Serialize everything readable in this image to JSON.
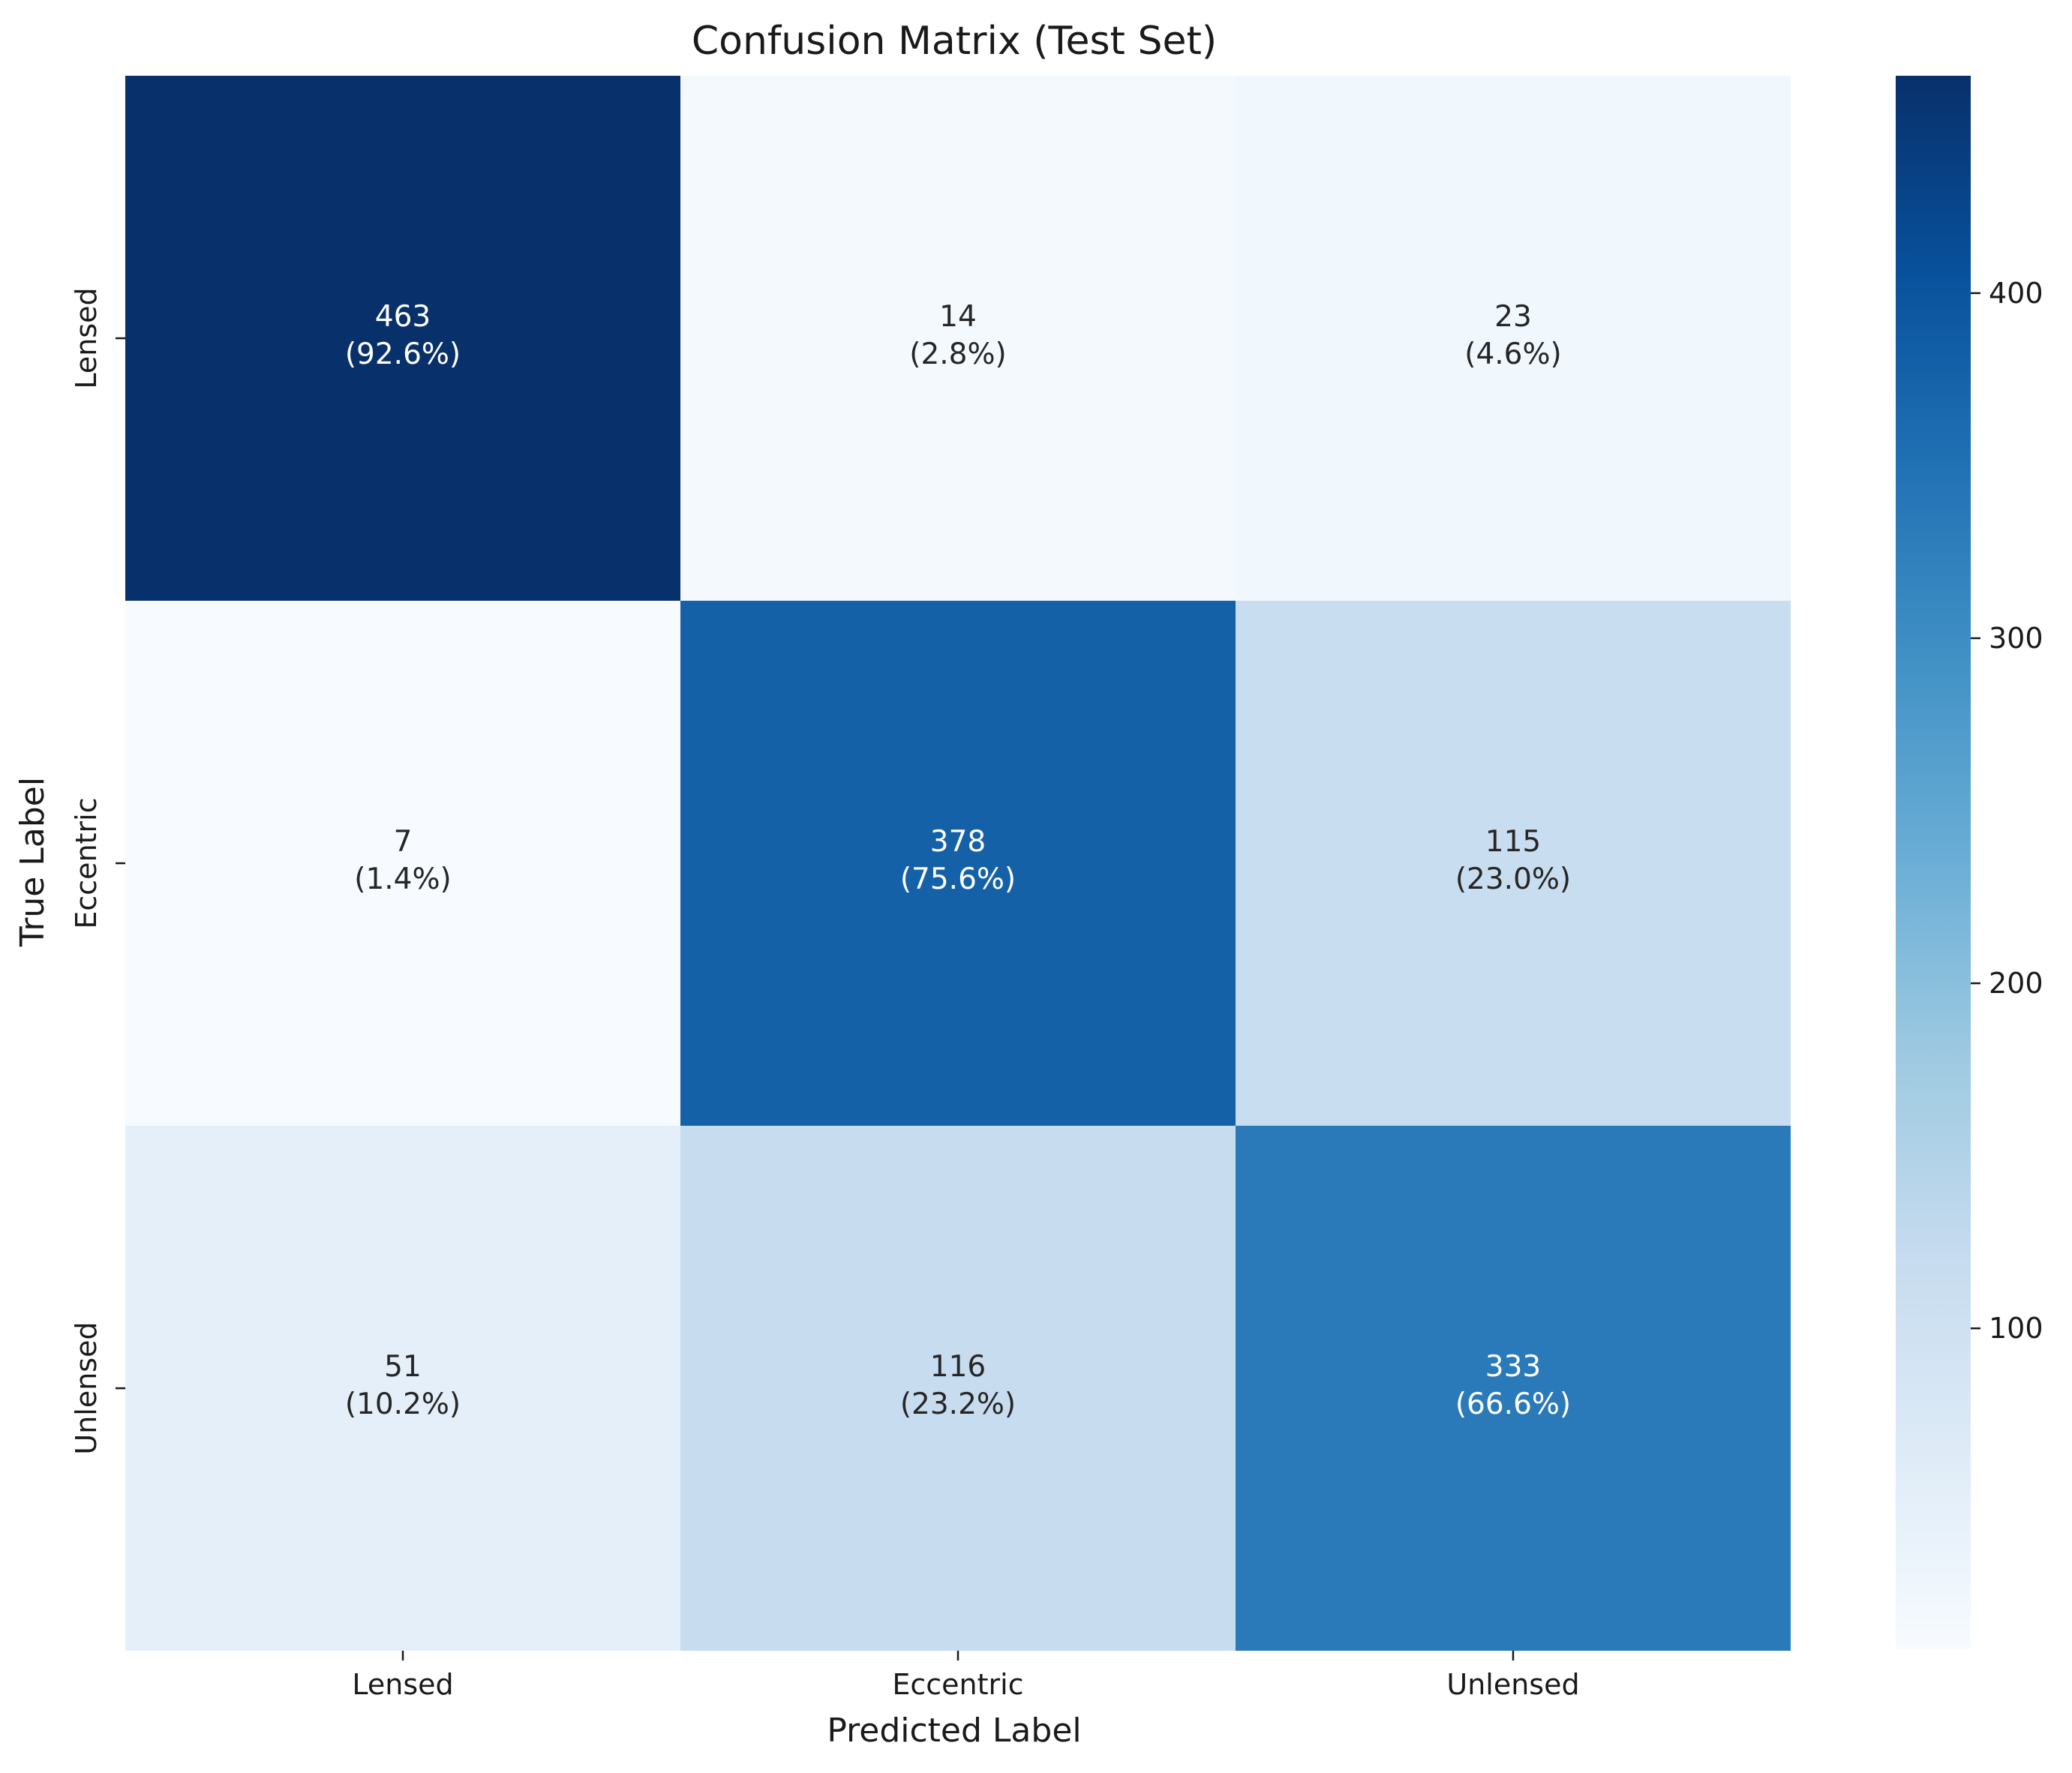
{
  "chart_data": {
    "type": "heatmap",
    "title": "Confusion Matrix (Test Set)",
    "xlabel": "Predicted Label",
    "ylabel": "True Label",
    "x_categories": [
      "Lensed",
      "Eccentric",
      "Unlensed"
    ],
    "y_categories": [
      "Lensed",
      "Eccentric",
      "Unlensed"
    ],
    "values": [
      [
        463,
        14,
        23
      ],
      [
        7,
        378,
        115
      ],
      [
        51,
        116,
        333
      ]
    ],
    "cell_labels": [
      [
        {
          "count": "463",
          "percent": "(92.6%)"
        },
        {
          "count": "14",
          "percent": "(2.8%)"
        },
        {
          "count": "23",
          "percent": "(4.6%)"
        }
      ],
      [
        {
          "count": "7",
          "percent": "(1.4%)"
        },
        {
          "count": "378",
          "percent": "(75.6%)"
        },
        {
          "count": "115",
          "percent": "(23.0%)"
        }
      ],
      [
        {
          "count": "51",
          "percent": "(10.2%)"
        },
        {
          "count": "116",
          "percent": "(23.2%)"
        },
        {
          "count": "333",
          "percent": "(66.6%)"
        }
      ]
    ],
    "colormap": "Blues",
    "colorbar": {
      "min": 7,
      "max": 463,
      "ticks": [
        100,
        200,
        300,
        400
      ],
      "tick_labels": [
        "100",
        "200",
        "300",
        "400"
      ]
    },
    "grid": false,
    "legend": "colorbar-right"
  }
}
